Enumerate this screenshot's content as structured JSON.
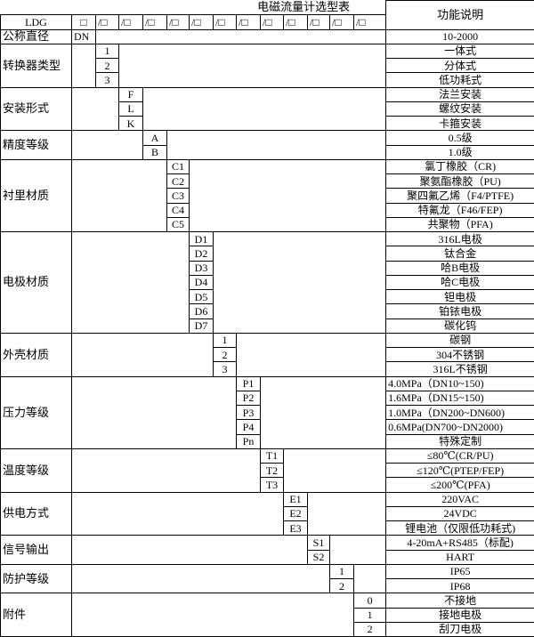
{
  "title": "电磁流量计选型表",
  "desc_header": "功能说明",
  "model_prefix": "LDG",
  "model_slots": [
    "□",
    "/□",
    "/□",
    "/□",
    "/□",
    "/□",
    "/□",
    "/□",
    "/□",
    "/□",
    "/□",
    "/□",
    "/□"
  ],
  "dn_row": {
    "label": "公称直径",
    "code": "DN",
    "desc": "10-2000"
  },
  "groups": [
    {
      "label": "转换器类型",
      "options": [
        {
          "code": "1",
          "desc": "一体式"
        },
        {
          "code": "2",
          "desc": "分体式"
        },
        {
          "code": "3",
          "desc": "低功耗式"
        }
      ]
    },
    {
      "label": "安装形式",
      "options": [
        {
          "code": "F",
          "desc": "法兰安装"
        },
        {
          "code": "L",
          "desc": "螺纹安装"
        },
        {
          "code": "K",
          "desc": "卡箍安装"
        }
      ]
    },
    {
      "label": "精度等级",
      "options": [
        {
          "code": "A",
          "desc": "0.5级"
        },
        {
          "code": "B",
          "desc": "1.0级"
        }
      ]
    },
    {
      "label": "衬里材质",
      "options": [
        {
          "code": "C1",
          "desc": "氯丁橡胶（CR)"
        },
        {
          "code": "C2",
          "desc": "聚氨酯橡胶（PU)"
        },
        {
          "code": "C3",
          "desc": "聚四氟乙烯（F4/PTFE)"
        },
        {
          "code": "C4",
          "desc": "特氟龙（F46/FEP)"
        },
        {
          "code": "C5",
          "desc": "共聚物（PFA)"
        }
      ]
    },
    {
      "label": "电极材质",
      "options": [
        {
          "code": "D1",
          "desc": "316L电极"
        },
        {
          "code": "D2",
          "desc": "钛合金"
        },
        {
          "code": "D3",
          "desc": "哈B电极"
        },
        {
          "code": "D4",
          "desc": "哈C电极"
        },
        {
          "code": "D5",
          "desc": "钽电极"
        },
        {
          "code": "D6",
          "desc": "铂铱电极"
        },
        {
          "code": "D7",
          "desc": "碳化钨"
        }
      ]
    },
    {
      "label": "外壳材质",
      "options": [
        {
          "code": "1",
          "desc": "碳钢"
        },
        {
          "code": "2",
          "desc": "304不锈钢"
        },
        {
          "code": "3",
          "desc": "316L不锈钢"
        }
      ]
    },
    {
      "label": "压力等级",
      "options": [
        {
          "code": "P1",
          "desc": "4.0MPa（DN10~150)",
          "align": "left"
        },
        {
          "code": "P2",
          "desc": "1.6MPa（DN15~150)",
          "align": "left"
        },
        {
          "code": "P3",
          "desc": "1.0MPa（DN200~DN600)",
          "align": "left"
        },
        {
          "code": "P4",
          "desc": "0.6MPa(DN700~DN2000)",
          "align": "left"
        },
        {
          "code": "Pn",
          "desc": "特殊定制"
        }
      ]
    },
    {
      "label": "温度等级",
      "options": [
        {
          "code": "T1",
          "desc": "≤80℃(CR/PU)"
        },
        {
          "code": "T2",
          "desc": "≤120℃(PTEP/FEP)"
        },
        {
          "code": "T3",
          "desc": "≤200℃(PFA)"
        }
      ]
    },
    {
      "label": "供电方式",
      "options": [
        {
          "code": "E1",
          "desc": "220VAC"
        },
        {
          "code": "E2",
          "desc": "24VDC"
        },
        {
          "code": "E3",
          "desc": "锂电池（仅限低功耗式)"
        }
      ]
    },
    {
      "label": "信号输出",
      "options": [
        {
          "code": "S1",
          "desc": "4-20mA+RS485（标配)"
        },
        {
          "code": "S2",
          "desc": "HART"
        }
      ]
    },
    {
      "label": "防护等级",
      "options": [
        {
          "code": "1",
          "desc": "IP65"
        },
        {
          "code": "2",
          "desc": "IP68"
        }
      ]
    },
    {
      "label": "附件",
      "options": [
        {
          "code": "0",
          "desc": "不接地"
        },
        {
          "code": "1",
          "desc": "接地电极"
        },
        {
          "code": "2",
          "desc": "刮刀电极"
        }
      ]
    }
  ]
}
